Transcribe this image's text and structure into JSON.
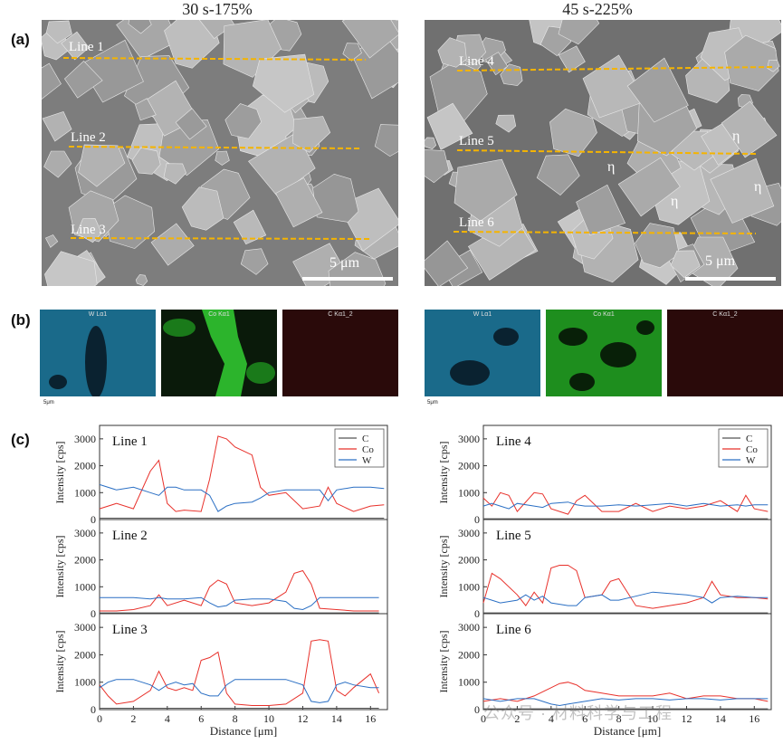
{
  "panel_a": {
    "label": "(a)",
    "left": {
      "title": "30 s-175%",
      "lines": [
        "Line 1",
        "Line 2",
        "Line 3"
      ],
      "scalebar": "5 μm"
    },
    "right": {
      "title": "45 s-225%",
      "lines": [
        "Line 4",
        "Line 5",
        "Line 6"
      ],
      "scalebar": "5 μm",
      "eta_labels": [
        "η",
        "η",
        "η",
        "η"
      ]
    }
  },
  "panel_b": {
    "label": "(b)",
    "maps": [
      "W Lα1",
      "Co Kα1",
      "C Kα1_2"
    ],
    "scale": "5μm"
  },
  "panel_c": {
    "label": "(c)",
    "ylabel": "Intensity [cps]",
    "xlabel": "Distance [μm]",
    "legend": [
      "C",
      "Co",
      "W"
    ]
  },
  "watermark": "公众号 · 材料科学与工程",
  "colors": {
    "C": "#555555",
    "Co": "#e8312b",
    "W": "#2a6fc4",
    "line_marker": "#f5b400"
  },
  "chart_data": [
    {
      "type": "line",
      "title": "Line 1",
      "xlim": [
        0,
        17
      ],
      "ylim": [
        0,
        3500
      ],
      "x": [
        0,
        1,
        2,
        3,
        3.5,
        4,
        4.5,
        5,
        6,
        6.5,
        7,
        7.5,
        8,
        9,
        9.5,
        10,
        11,
        12,
        13,
        13.5,
        14,
        15,
        16,
        16.8
      ],
      "series": [
        {
          "name": "C",
          "values": [
            50,
            50,
            50,
            50,
            50,
            50,
            50,
            50,
            50,
            50,
            50,
            50,
            50,
            50,
            50,
            50,
            50,
            50,
            50,
            50,
            50,
            50,
            50,
            50
          ]
        },
        {
          "name": "Co",
          "values": [
            400,
            600,
            400,
            1800,
            2200,
            600,
            300,
            350,
            300,
            1500,
            3100,
            3000,
            2700,
            2400,
            1200,
            900,
            1000,
            400,
            500,
            1200,
            600,
            300,
            500,
            550
          ]
        },
        {
          "name": "W",
          "values": [
            1300,
            1100,
            1200,
            1000,
            900,
            1200,
            1200,
            1100,
            1100,
            900,
            300,
            500,
            600,
            650,
            800,
            1000,
            1100,
            1100,
            1100,
            700,
            1100,
            1200,
            1200,
            1150
          ]
        }
      ]
    },
    {
      "type": "line",
      "title": "Line 2",
      "xlim": [
        0,
        17
      ],
      "ylim": [
        0,
        3500
      ],
      "x": [
        0,
        1,
        2,
        3,
        3.5,
        4,
        5,
        6,
        6.5,
        7,
        7.5,
        8,
        9,
        10,
        11,
        11.5,
        12,
        12.5,
        13,
        14,
        15,
        16,
        16.5
      ],
      "series": [
        {
          "name": "C",
          "values": [
            30,
            30,
            30,
            30,
            30,
            30,
            30,
            30,
            30,
            30,
            30,
            30,
            30,
            30,
            30,
            30,
            30,
            30,
            30,
            30,
            30,
            30,
            30
          ]
        },
        {
          "name": "Co",
          "values": [
            100,
            100,
            150,
            300,
            700,
            300,
            500,
            300,
            1000,
            1250,
            1100,
            400,
            300,
            400,
            800,
            1500,
            1600,
            1100,
            200,
            150,
            100,
            100,
            100
          ]
        },
        {
          "name": "W",
          "values": [
            600,
            600,
            600,
            550,
            600,
            550,
            550,
            600,
            400,
            250,
            300,
            500,
            550,
            550,
            450,
            200,
            150,
            300,
            600,
            600,
            600,
            600,
            600
          ]
        }
      ]
    },
    {
      "type": "line",
      "title": "Line 3",
      "xlim": [
        0,
        17
      ],
      "ylim": [
        0,
        3500
      ],
      "x": [
        0,
        0.5,
        1,
        2,
        3,
        3.5,
        4,
        4.5,
        5,
        5.5,
        6,
        6.5,
        7,
        7.5,
        8,
        9,
        10,
        11,
        12,
        12.5,
        13,
        13.5,
        14,
        14.5,
        15,
        16,
        16.5
      ],
      "series": [
        {
          "name": "C",
          "values": [
            50,
            50,
            50,
            50,
            50,
            50,
            50,
            50,
            50,
            50,
            50,
            50,
            50,
            50,
            50,
            50,
            50,
            50,
            50,
            50,
            50,
            50,
            50,
            50,
            50,
            50,
            50
          ]
        },
        {
          "name": "Co",
          "values": [
            900,
            500,
            200,
            300,
            700,
            1400,
            800,
            700,
            800,
            700,
            1800,
            1900,
            2100,
            600,
            200,
            150,
            150,
            200,
            600,
            2500,
            2550,
            2500,
            700,
            500,
            800,
            1300,
            600
          ]
        },
        {
          "name": "W",
          "values": [
            800,
            1000,
            1100,
            1100,
            900,
            700,
            900,
            1000,
            900,
            950,
            600,
            500,
            500,
            900,
            1100,
            1100,
            1100,
            1100,
            900,
            300,
            250,
            300,
            900,
            1000,
            900,
            800,
            800
          ]
        }
      ]
    },
    {
      "type": "line",
      "title": "Line 4",
      "xlim": [
        0,
        17
      ],
      "ylim": [
        0,
        3500
      ],
      "x": [
        0,
        0.5,
        1,
        1.5,
        2,
        3,
        3.5,
        4,
        5,
        5.5,
        6,
        7,
        8,
        9,
        10,
        11,
        12,
        13,
        14,
        15,
        15.5,
        16,
        16.8
      ],
      "series": [
        {
          "name": "C",
          "values": [
            30,
            30,
            30,
            30,
            30,
            30,
            30,
            30,
            30,
            30,
            30,
            30,
            30,
            30,
            30,
            30,
            30,
            30,
            30,
            30,
            30,
            30,
            30
          ]
        },
        {
          "name": "Co",
          "values": [
            800,
            500,
            1000,
            900,
            300,
            1000,
            950,
            400,
            200,
            700,
            900,
            300,
            300,
            600,
            300,
            500,
            400,
            500,
            700,
            300,
            900,
            400,
            300
          ]
        },
        {
          "name": "W",
          "values": [
            500,
            600,
            500,
            400,
            600,
            500,
            450,
            600,
            650,
            550,
            500,
            500,
            550,
            500,
            550,
            600,
            500,
            600,
            500,
            550,
            500,
            550,
            550
          ]
        }
      ]
    },
    {
      "type": "line",
      "title": "Line 5",
      "xlim": [
        0,
        17
      ],
      "ylim": [
        0,
        3500
      ],
      "x": [
        0,
        0.5,
        1,
        2,
        2.5,
        3,
        3.5,
        4,
        4.5,
        5,
        5.5,
        6,
        7,
        7.5,
        8,
        9,
        10,
        11,
        12,
        13,
        13.5,
        14,
        15,
        16,
        16.8
      ],
      "series": [
        {
          "name": "C",
          "values": [
            30,
            30,
            30,
            30,
            30,
            30,
            30,
            30,
            30,
            30,
            30,
            30,
            30,
            30,
            30,
            30,
            30,
            30,
            30,
            30,
            30,
            30,
            30,
            30,
            30
          ]
        },
        {
          "name": "Co",
          "values": [
            400,
            1500,
            1300,
            700,
            300,
            800,
            400,
            1700,
            1800,
            1800,
            1600,
            600,
            700,
            1200,
            1300,
            300,
            200,
            300,
            400,
            600,
            1200,
            700,
            600,
            600,
            550
          ]
        },
        {
          "name": "W",
          "values": [
            600,
            500,
            400,
            500,
            700,
            500,
            650,
            400,
            350,
            300,
            300,
            600,
            700,
            500,
            500,
            650,
            800,
            750,
            700,
            600,
            400,
            600,
            650,
            600,
            600
          ]
        }
      ]
    },
    {
      "type": "line",
      "title": "Line 6",
      "xlim": [
        0,
        17
      ],
      "ylim": [
        0,
        3500
      ],
      "x": [
        0,
        1,
        2,
        3,
        4,
        4.5,
        5,
        5.5,
        6,
        7,
        8,
        9,
        10,
        11,
        12,
        13,
        14,
        15,
        16,
        16.8
      ],
      "series": [
        {
          "name": "C",
          "values": [
            30,
            30,
            30,
            30,
            30,
            30,
            30,
            30,
            30,
            30,
            30,
            30,
            30,
            30,
            30,
            30,
            30,
            30,
            30,
            30
          ]
        },
        {
          "name": "Co",
          "values": [
            300,
            400,
            300,
            500,
            800,
            950,
            1000,
            900,
            700,
            600,
            500,
            500,
            500,
            600,
            400,
            500,
            500,
            400,
            400,
            300
          ]
        },
        {
          "name": "W",
          "values": [
            400,
            300,
            400,
            400,
            200,
            150,
            200,
            250,
            300,
            400,
            350,
            400,
            400,
            350,
            400,
            400,
            350,
            400,
            400,
            400
          ]
        }
      ]
    }
  ]
}
